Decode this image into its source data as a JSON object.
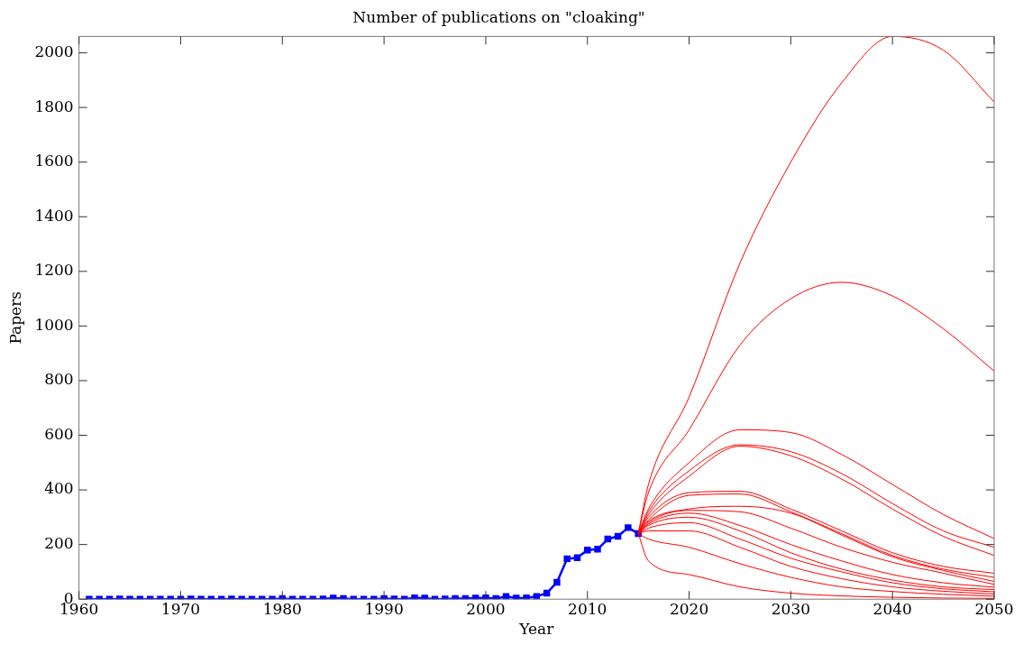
{
  "chart_data": {
    "type": "line",
    "title": "Number of publications on \"cloaking\"",
    "xlabel": "Year",
    "ylabel": "Papers",
    "xlim": [
      1960,
      2050
    ],
    "xticks": [
      1960,
      1970,
      1980,
      1990,
      2000,
      2010,
      2020,
      2030,
      2040,
      2050
    ],
    "ylim": [
      0,
      2060
    ],
    "yticks": [
      0,
      200,
      400,
      600,
      800,
      1000,
      1200,
      1400,
      1600,
      1800,
      2000
    ],
    "grid": false,
    "legend": false,
    "marker": "square",
    "line_style": "solid",
    "series": [
      {
        "color": "#ff0000",
        "marker": "none",
        "x": [
          2015,
          2016,
          2020,
          2025,
          2030,
          2035,
          2040,
          2045,
          2050
        ],
        "values": [
          240,
          420,
          740,
          1230,
          1600,
          1890,
          2060,
          2010,
          1820
        ]
      },
      {
        "color": "#ff0000",
        "marker": "none",
        "x": [
          2015,
          2016,
          2020,
          2025,
          2030,
          2035,
          2040,
          2045,
          2050
        ],
        "values": [
          240,
          390,
          620,
          930,
          1100,
          1160,
          1110,
          990,
          835
        ]
      },
      {
        "color": "#ff0000",
        "marker": "none",
        "x": [
          2015,
          2016,
          2020,
          2025,
          2030,
          2035,
          2040,
          2045,
          2050
        ],
        "values": [
          240,
          330,
          500,
          620,
          610,
          530,
          420,
          310,
          222
        ]
      },
      {
        "color": "#ff0000",
        "marker": "none",
        "x": [
          2015,
          2016,
          2020,
          2025,
          2030,
          2035,
          2040,
          2045,
          2050
        ],
        "values": [
          240,
          320,
          470,
          565,
          540,
          460,
          350,
          250,
          190
        ]
      },
      {
        "color": "#ff0000",
        "marker": "none",
        "x": [
          2015,
          2016,
          2020,
          2025,
          2030,
          2035,
          2040,
          2045,
          2050
        ],
        "values": [
          240,
          310,
          450,
          560,
          525,
          440,
          330,
          230,
          160
        ]
      },
      {
        "color": "#ff0000",
        "marker": "none",
        "x": [
          2015,
          2016,
          2020,
          2025,
          2030,
          2035,
          2040,
          2045,
          2050
        ],
        "values": [
          240,
          300,
          390,
          395,
          330,
          250,
          170,
          120,
          95
        ]
      },
      {
        "color": "#ff0000",
        "marker": "none",
        "x": [
          2015,
          2016,
          2020,
          2025,
          2030,
          2035,
          2040,
          2045,
          2050
        ],
        "values": [
          240,
          290,
          380,
          385,
          320,
          240,
          160,
          110,
          80
        ]
      },
      {
        "color": "#ff0000",
        "marker": "none",
        "x": [
          2015,
          2016,
          2020,
          2025,
          2030,
          2035,
          2040,
          2045,
          2050
        ],
        "values": [
          240,
          285,
          330,
          340,
          315,
          235,
          155,
          105,
          65
        ]
      },
      {
        "color": "#ff0000",
        "marker": "none",
        "x": [
          2015,
          2016,
          2020,
          2025,
          2030,
          2035,
          2040,
          2045,
          2050
        ],
        "values": [
          240,
          280,
          325,
          320,
          260,
          190,
          135,
          95,
          54
        ]
      },
      {
        "color": "#ff0000",
        "marker": "none",
        "x": [
          2015,
          2016,
          2020,
          2025,
          2030,
          2035,
          2040,
          2045,
          2050
        ],
        "values": [
          240,
          275,
          315,
          270,
          200,
          140,
          90,
          60,
          44
        ]
      },
      {
        "color": "#ff0000",
        "marker": "none",
        "x": [
          2015,
          2016,
          2020,
          2025,
          2030,
          2035,
          2040,
          2045,
          2050
        ],
        "values": [
          240,
          270,
          300,
          250,
          170,
          110,
          70,
          45,
          35
        ]
      },
      {
        "color": "#ff0000",
        "marker": "none",
        "x": [
          2015,
          2016,
          2020,
          2025,
          2030,
          2035,
          2040,
          2045,
          2050
        ],
        "values": [
          240,
          260,
          280,
          220,
          150,
          100,
          60,
          38,
          27
        ]
      },
      {
        "color": "#ff0000",
        "marker": "none",
        "x": [
          2015,
          2016,
          2020,
          2025,
          2030,
          2035,
          2040,
          2045,
          2050
        ],
        "values": [
          240,
          250,
          250,
          190,
          120,
          75,
          45,
          29,
          19
        ]
      },
      {
        "color": "#ff0000",
        "marker": "none",
        "x": [
          2015,
          2016,
          2020,
          2025,
          2030,
          2035,
          2040,
          2045,
          2050
        ],
        "values": [
          240,
          220,
          190,
          130,
          80,
          45,
          28,
          18,
          11
        ]
      },
      {
        "color": "#ff0000",
        "marker": "none",
        "x": [
          2015,
          2016,
          2020,
          2025,
          2030,
          2035,
          2040,
          2045,
          2050
        ],
        "values": [
          240,
          140,
          90,
          45,
          22,
          12,
          7,
          4,
          3
        ]
      },
      {
        "color": "#0000ff",
        "x": [
          1961,
          1962,
          1963,
          1964,
          1965,
          1966,
          1967,
          1968,
          1969,
          1970,
          1971,
          1972,
          1973,
          1974,
          1975,
          1976,
          1977,
          1978,
          1979,
          1980,
          1981,
          1982,
          1983,
          1984,
          1985,
          1986,
          1987,
          1988,
          1989,
          1990,
          1991,
          1992,
          1993,
          1994,
          1995,
          1996,
          1997,
          1998,
          1999,
          2000,
          2001,
          2002,
          2003,
          2004,
          2005,
          2006,
          2007,
          2008,
          2009,
          2010,
          2011,
          2012,
          2013,
          2014,
          2015
        ],
        "values": [
          0,
          0,
          0,
          1,
          0,
          0,
          0,
          0,
          0,
          0,
          1,
          0,
          0,
          0,
          1,
          0,
          0,
          0,
          0,
          2,
          0,
          0,
          0,
          1,
          4,
          2,
          0,
          0,
          0,
          2,
          1,
          0,
          5,
          4,
          0,
          1,
          2,
          2,
          4,
          5,
          2,
          10,
          4,
          5,
          10,
          22,
          62,
          148,
          152,
          180,
          183,
          220,
          230,
          262,
          240
        ]
      }
    ]
  }
}
